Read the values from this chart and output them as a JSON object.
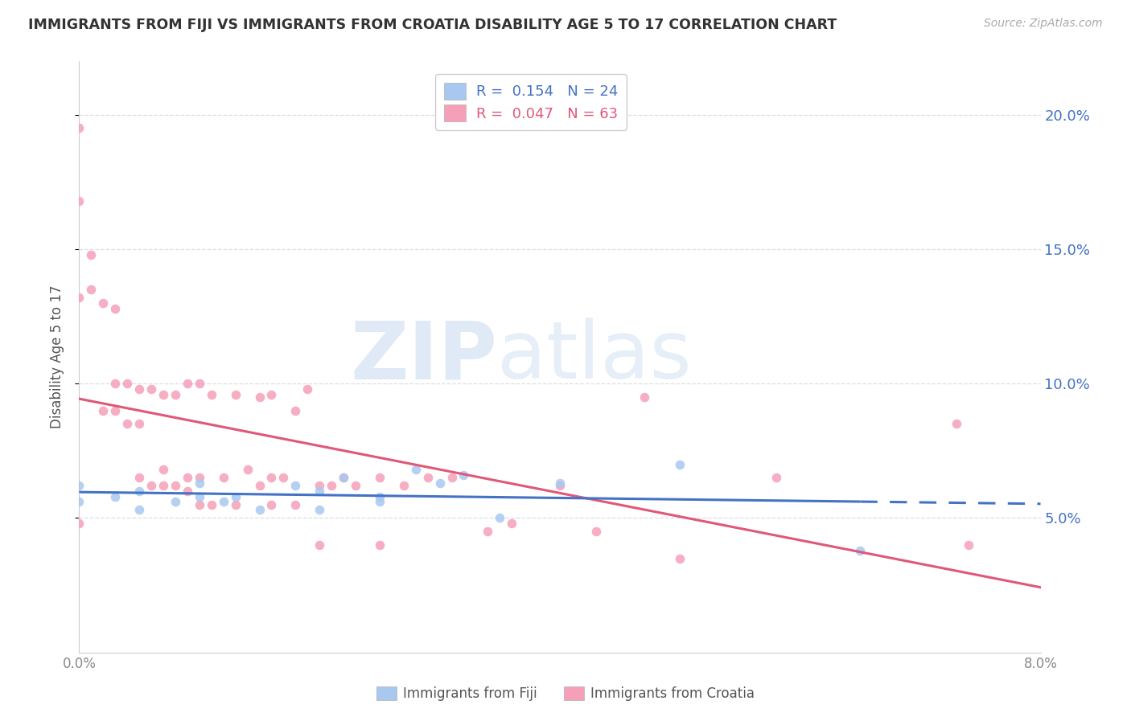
{
  "title": "IMMIGRANTS FROM FIJI VS IMMIGRANTS FROM CROATIA DISABILITY AGE 5 TO 17 CORRELATION CHART",
  "source_text": "Source: ZipAtlas.com",
  "ylabel": "Disability Age 5 to 17",
  "fiji_R": 0.154,
  "fiji_N": 24,
  "croatia_R": 0.047,
  "croatia_N": 63,
  "fiji_color": "#a8c8f0",
  "croatia_color": "#f5a0b8",
  "fiji_line_color": "#4472c4",
  "croatia_line_color": "#e05878",
  "fiji_scatter_x": [
    0.0,
    0.0,
    0.003,
    0.005,
    0.005,
    0.008,
    0.01,
    0.01,
    0.012,
    0.013,
    0.015,
    0.018,
    0.02,
    0.02,
    0.022,
    0.025,
    0.025,
    0.028,
    0.03,
    0.032,
    0.035,
    0.04,
    0.05,
    0.065
  ],
  "fiji_scatter_y": [
    0.056,
    0.062,
    0.058,
    0.053,
    0.06,
    0.056,
    0.058,
    0.063,
    0.056,
    0.058,
    0.053,
    0.062,
    0.06,
    0.053,
    0.065,
    0.056,
    0.058,
    0.068,
    0.063,
    0.066,
    0.05,
    0.063,
    0.07,
    0.038
  ],
  "croatia_scatter_x": [
    0.0,
    0.0,
    0.0,
    0.0,
    0.001,
    0.001,
    0.002,
    0.002,
    0.003,
    0.003,
    0.003,
    0.004,
    0.004,
    0.005,
    0.005,
    0.005,
    0.006,
    0.006,
    0.007,
    0.007,
    0.007,
    0.008,
    0.008,
    0.009,
    0.009,
    0.009,
    0.01,
    0.01,
    0.01,
    0.011,
    0.011,
    0.012,
    0.013,
    0.013,
    0.014,
    0.015,
    0.015,
    0.016,
    0.016,
    0.016,
    0.017,
    0.018,
    0.018,
    0.019,
    0.02,
    0.02,
    0.021,
    0.022,
    0.023,
    0.025,
    0.025,
    0.027,
    0.029,
    0.031,
    0.034,
    0.036,
    0.04,
    0.043,
    0.047,
    0.05,
    0.058,
    0.073,
    0.074
  ],
  "croatia_scatter_y": [
    0.195,
    0.168,
    0.132,
    0.048,
    0.148,
    0.135,
    0.13,
    0.09,
    0.128,
    0.1,
    0.09,
    0.1,
    0.085,
    0.098,
    0.085,
    0.065,
    0.098,
    0.062,
    0.096,
    0.068,
    0.062,
    0.096,
    0.062,
    0.1,
    0.065,
    0.06,
    0.1,
    0.065,
    0.055,
    0.096,
    0.055,
    0.065,
    0.096,
    0.055,
    0.068,
    0.095,
    0.062,
    0.096,
    0.055,
    0.065,
    0.065,
    0.09,
    0.055,
    0.098,
    0.062,
    0.04,
    0.062,
    0.065,
    0.062,
    0.065,
    0.04,
    0.062,
    0.065,
    0.065,
    0.045,
    0.048,
    0.062,
    0.045,
    0.095,
    0.035,
    0.065,
    0.085,
    0.04
  ],
  "xlim": [
    0.0,
    0.08
  ],
  "ylim": [
    0.0,
    0.22
  ],
  "watermark_zip": "ZIP",
  "watermark_atlas": "atlas",
  "background_color": "#ffffff",
  "grid_color": "#dddddd",
  "right_yaxis_label_color": "#4472c4",
  "legend_fiji_label": "Immigrants from Fiji",
  "legend_croatia_label": "Immigrants from Croatia",
  "right_yticks": [
    0.05,
    0.1,
    0.15,
    0.2
  ],
  "right_yticklabels": [
    "5.0%",
    "10.0%",
    "15.0%",
    "20.0%"
  ]
}
